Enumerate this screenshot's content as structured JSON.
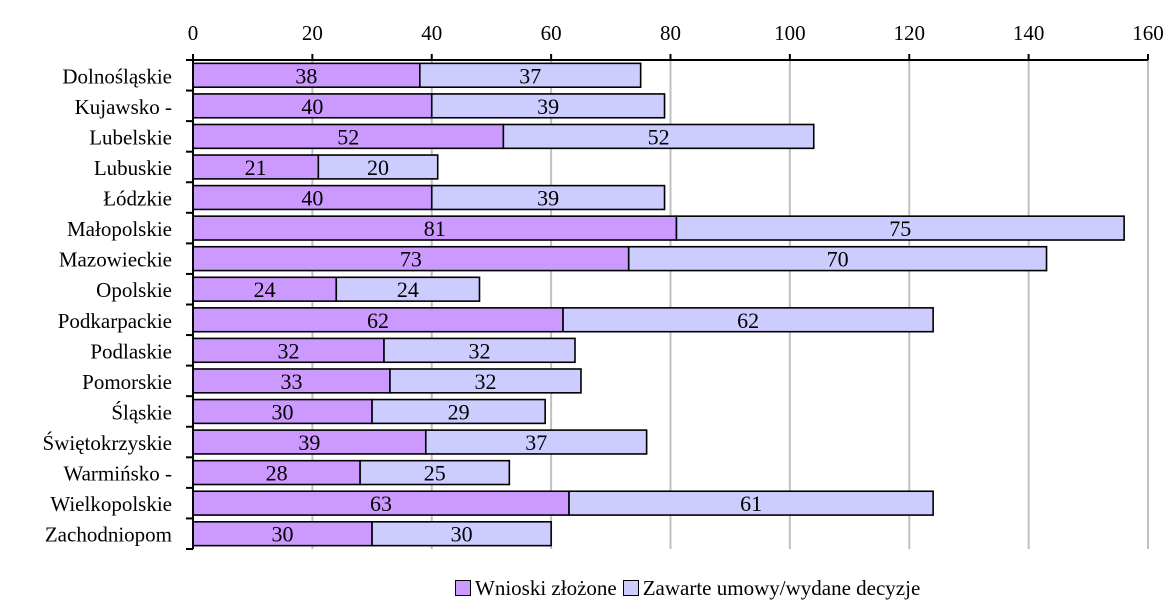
{
  "chart_data": {
    "type": "bar",
    "orientation": "horizontal",
    "stacked": true,
    "categories": [
      "Dolnośląskie",
      "Kujawsko -",
      "Lubelskie",
      "Lubuskie",
      "Łódzkie",
      "Małopolskie",
      "Mazowieckie",
      "Opolskie",
      "Podkarpackie",
      "Podlaskie",
      "Pomorskie",
      "Śląskie",
      "Świętokrzyskie",
      "Warmińsko -",
      "Wielkopolskie",
      "Zachodniopom"
    ],
    "series": [
      {
        "name": "Wnioski złożone",
        "color": "#cc99ff",
        "values": [
          38,
          40,
          52,
          21,
          40,
          81,
          73,
          24,
          62,
          32,
          33,
          30,
          39,
          28,
          63,
          30
        ]
      },
      {
        "name": "Zawarte umowy/wydane decyzje",
        "color": "#ccccff",
        "values": [
          37,
          39,
          52,
          20,
          39,
          75,
          70,
          24,
          62,
          32,
          32,
          29,
          37,
          25,
          61,
          30
        ]
      }
    ],
    "xlim": [
      0,
      160
    ],
    "xticks": [
      0,
      20,
      40,
      60,
      80,
      100,
      120,
      140,
      160
    ],
    "x_axis_position": "top",
    "grid": true,
    "legend_position": "bottom"
  }
}
